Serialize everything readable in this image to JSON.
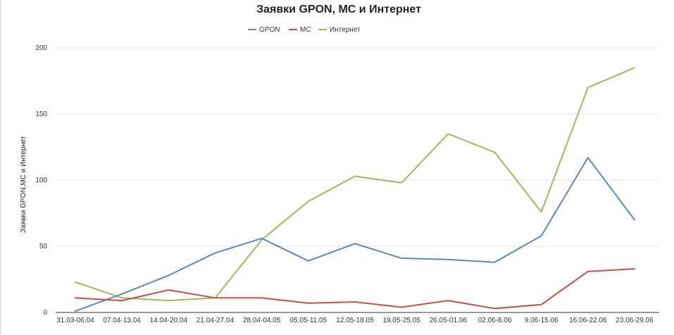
{
  "chart_data": {
    "type": "line",
    "title": "Заявки GPON, МС и Интернет",
    "xlabel": "",
    "ylabel": "Заявки GPON,МС и Интернет",
    "ylim": [
      0,
      200
    ],
    "yticks": [
      0,
      50,
      100,
      150,
      200
    ],
    "grid": true,
    "legend_position": "top-center",
    "categories": [
      "31.03-06.04",
      "07.04-13.04",
      "14.04-20.04",
      "21.04-27.04",
      "28.04-04.05",
      "05.05-11.05",
      "12.05-18.05",
      "19.05-25.05",
      "26.05-01.06",
      "02.06-8.06",
      "9.06-15.06",
      "16.06-22.06",
      "23.06-29.06"
    ],
    "series": [
      {
        "name": "GPON",
        "color": "#5b88b7",
        "values": [
          1,
          14,
          28,
          45,
          56,
          39,
          52,
          41,
          40,
          38,
          58,
          117,
          70
        ]
      },
      {
        "name": "МС",
        "color": "#c0504d",
        "values": [
          11,
          9,
          17,
          11,
          11,
          7,
          8,
          4,
          9,
          3,
          6,
          31,
          33
        ]
      },
      {
        "name": "Интернет",
        "color": "#9bbb59",
        "values": [
          23,
          11,
          9,
          11,
          55,
          84,
          103,
          98,
          135,
          121,
          76,
          170,
          185
        ]
      }
    ]
  }
}
